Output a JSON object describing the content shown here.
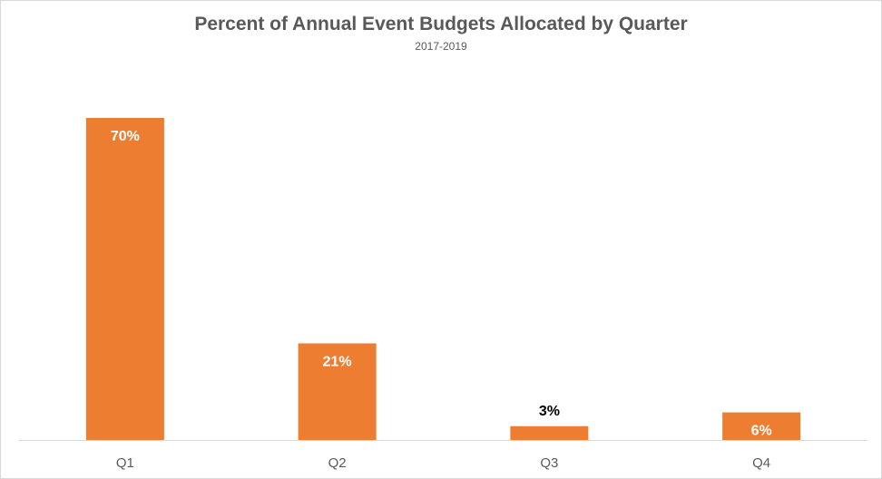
{
  "chart_data": {
    "type": "bar",
    "title": "Percent of Annual Event Budgets Allocated by Quarter",
    "subtitle": "2017-2019",
    "categories": [
      "Q1",
      "Q2",
      "Q3",
      "Q4"
    ],
    "values": [
      70,
      21,
      3,
      6
    ],
    "data_labels": [
      "70%",
      "21%",
      "3%",
      "6%"
    ],
    "xlabel": "",
    "ylabel": "",
    "ylim": [
      0,
      70
    ],
    "grid": false,
    "legend": "none",
    "colors": {
      "bar": "#ED7D31",
      "axis": "#d9d9d9",
      "label_inside": "#ffffff",
      "label_outside": "#000000",
      "tick_text": "#595959"
    }
  }
}
